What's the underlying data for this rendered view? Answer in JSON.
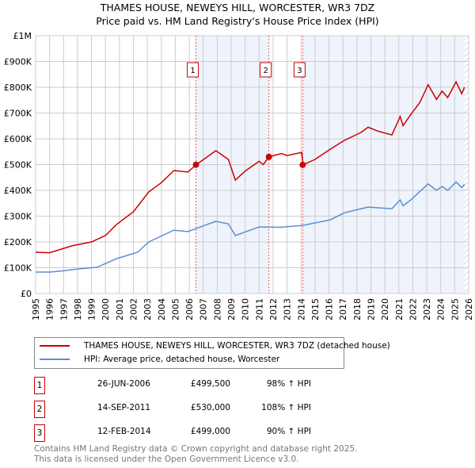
{
  "chart_data": {
    "type": "line",
    "title": "THAMES HOUSE, NEWEYS HILL, WORCESTER, WR3 7DZ",
    "subtitle": "Price paid vs. HM Land Registry's House Price Index (HPI)",
    "xlim": [
      1995,
      2026
    ],
    "ylim": [
      0,
      1000000
    ],
    "x_ticks": [
      "1995",
      "1996",
      "1997",
      "1998",
      "1999",
      "2000",
      "2001",
      "2002",
      "2003",
      "2004",
      "2005",
      "2006",
      "2007",
      "2008",
      "2009",
      "2010",
      "2011",
      "2012",
      "2013",
      "2014",
      "2015",
      "2016",
      "2017",
      "2018",
      "2019",
      "2020",
      "2021",
      "2022",
      "2023",
      "2024",
      "2025",
      "2026"
    ],
    "y_ticks": [
      {
        "v": 0,
        "label": "£0"
      },
      {
        "v": 100000,
        "label": "£100K"
      },
      {
        "v": 200000,
        "label": "£200K"
      },
      {
        "v": 300000,
        "label": "£300K"
      },
      {
        "v": 400000,
        "label": "£400K"
      },
      {
        "v": 500000,
        "label": "£500K"
      },
      {
        "v": 600000,
        "label": "£600K"
      },
      {
        "v": 700000,
        "label": "£700K"
      },
      {
        "v": 800000,
        "label": "£800K"
      },
      {
        "v": 900000,
        "label": "£900K"
      },
      {
        "v": 1000000,
        "label": "£1M"
      }
    ],
    "grid": true,
    "series": [
      {
        "name": "THAMES HOUSE, NEWEYS HILL, WORCESTER, WR3 7DZ (detached house)",
        "color": "#cc0000",
        "x": [
          1995,
          1996,
          1997.6,
          1999,
          2000,
          2000.8,
          2002,
          2003.1,
          2004,
          2004.9,
          2005.9,
          2006.5,
          2007.9,
          2008.8,
          2009.3,
          2010,
          2011,
          2011.3,
          2011.7,
          2012.6,
          2013,
          2014.05,
          2014.15,
          2015,
          2016.1,
          2017.1,
          2018.3,
          2018.8,
          2019.5,
          2020.5,
          2021.1,
          2021.3,
          2021.9,
          2022.5,
          2023.1,
          2023.7,
          2024.1,
          2024.5,
          2025.1,
          2025.5,
          2025.7
        ],
        "y": [
          160000,
          158000,
          185000,
          200000,
          225000,
          268000,
          317000,
          394000,
          430000,
          477000,
          471000,
          499500,
          554000,
          520000,
          440000,
          475000,
          513000,
          500000,
          530000,
          543000,
          535000,
          547000,
          499000,
          520000,
          560000,
          594000,
          625000,
          645000,
          630000,
          615000,
          686000,
          651000,
          698000,
          740000,
          810000,
          753000,
          785000,
          760000,
          821000,
          775000,
          800000
        ]
      },
      {
        "name": "HPI: Average price, detached house, Worcester",
        "color": "#5b8fd0",
        "x": [
          1995,
          1996,
          1997,
          1998,
          1999.4,
          2000.8,
          2002.3,
          2003.1,
          2004.9,
          2005.9,
          2006.5,
          2007.9,
          2008.8,
          2009.3,
          2011,
          2012.6,
          2014.2,
          2016.1,
          2017.1,
          2018.3,
          2018.8,
          2020.5,
          2021.1,
          2021.3,
          2021.9,
          2022.5,
          2023.1,
          2023.7,
          2024.1,
          2024.5,
          2025.1,
          2025.5,
          2025.7
        ],
        "y": [
          83000,
          83000,
          88000,
          95000,
          102000,
          135000,
          160000,
          200000,
          246000,
          240000,
          252000,
          280000,
          270000,
          225000,
          258000,
          257000,
          265000,
          286000,
          313000,
          329000,
          335000,
          329000,
          363000,
          340000,
          365000,
          395000,
          425000,
          400000,
          415000,
          400000,
          433000,
          411000,
          423000
        ]
      }
    ],
    "sales": [
      {
        "id": "1",
        "x": 2006.48,
        "y": 499500,
        "date": "26-JUN-2006",
        "price": "£499,500",
        "hpi": "98% ↑ HPI"
      },
      {
        "id": "2",
        "x": 2011.7,
        "y": 530000,
        "date": "14-SEP-2011",
        "price": "£530,000",
        "hpi": "108% ↑ HPI"
      },
      {
        "id": "3",
        "x": 2014.12,
        "y": 499000,
        "date": "12-FEB-2014",
        "price": "£499,000",
        "hpi": "90% ↑ HPI"
      }
    ],
    "shaded_ranges": [
      [
        2006.48,
        2011.7
      ],
      [
        2014.12,
        2025.7
      ]
    ],
    "hatched_from": 2025.7
  },
  "legend": {
    "red": "THAMES HOUSE, NEWEYS HILL, WORCESTER, WR3 7DZ (detached house)",
    "blue": "HPI: Average price, detached house, Worcester"
  },
  "footer": {
    "line1": "Contains HM Land Registry data © Crown copyright and database right 2025.",
    "line2": "This data is licensed under the Open Government Licence v3.0."
  }
}
